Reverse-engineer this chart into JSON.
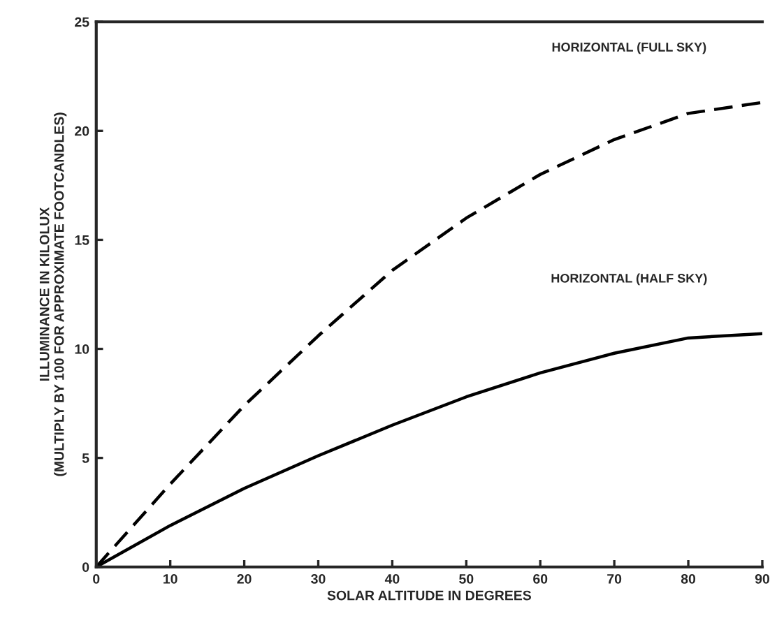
{
  "chart_data": {
    "type": "line",
    "xlabel": "SOLAR ALTITUDE IN DEGREES",
    "ylabel": "ILLUMINANCE IN KILOLUX\n(MULTIPLY BY 100 FOR APPROXIMATE FOOTCANDLES)",
    "x": [
      0,
      10,
      20,
      30,
      40,
      50,
      60,
      70,
      80,
      90
    ],
    "series": [
      {
        "color": "#000000",
        "line_style": "dashed",
        "values": [
          0,
          3.8,
          7.4,
          10.6,
          13.6,
          16.0,
          18.0,
          19.6,
          20.8,
          21.3
        ]
      },
      {
        "color": "#000000",
        "line_style": "solid",
        "values": [
          0,
          1.9,
          3.6,
          5.1,
          6.5,
          7.8,
          8.9,
          9.8,
          10.5,
          10.7
        ]
      }
    ],
    "annotations": [
      "HORIZONTAL (FULL SKY)",
      "HORIZONTAL (HALF SKY)"
    ],
    "xlim": [
      0,
      90
    ],
    "ylim": [
      0,
      25
    ],
    "xticks": [
      0,
      10,
      20,
      30,
      40,
      50,
      60,
      70,
      80,
      90
    ],
    "yticks": [
      0,
      5,
      10,
      15,
      20,
      25
    ],
    "grid": false,
    "legend": false,
    "marker": "none"
  }
}
